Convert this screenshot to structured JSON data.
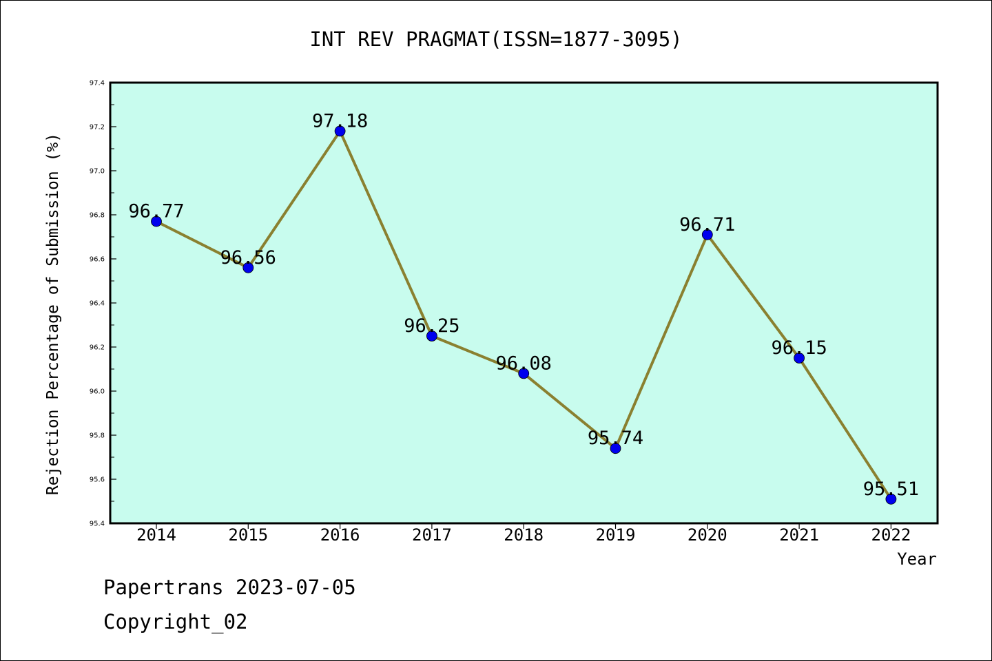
{
  "chart_data": {
    "type": "line",
    "title": "INT REV PRAGMAT(ISSN=1877-3095)",
    "xlabel": "Year",
    "ylabel": "Rejection Percentage of Submission (%)",
    "categories": [
      "2014",
      "2015",
      "2016",
      "2017",
      "2018",
      "2019",
      "2020",
      "2021",
      "2022"
    ],
    "values": [
      96.77,
      96.56,
      97.18,
      96.25,
      96.08,
      95.74,
      96.71,
      96.15,
      95.51
    ],
    "data_labels": [
      "96.77",
      "96.56",
      "97.18",
      "96.25",
      "96.08",
      "95.74",
      "96.71",
      "96.15",
      "95.51"
    ],
    "ylim": [
      95.4,
      97.4
    ],
    "y_ticks": [
      "95.4",
      "95.6",
      "95.8",
      "96.0",
      "96.2",
      "96.4",
      "96.6",
      "96.8",
      "97.0",
      "97.2",
      "97.4"
    ],
    "grid": false,
    "colors": {
      "plot_background": "#c8fcee",
      "line": "#8a8030",
      "marker": "#0000ee"
    }
  },
  "footer": {
    "line1": "Papertrans 2023-07-05",
    "line2": "Copyright_02"
  }
}
